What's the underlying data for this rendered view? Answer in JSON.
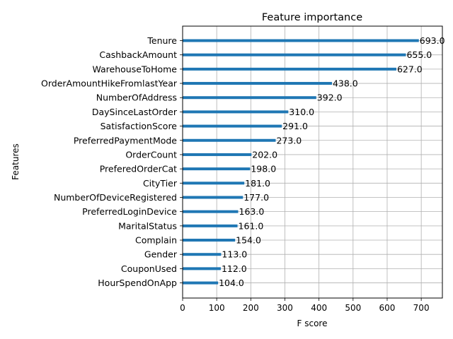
{
  "chart_data": {
    "type": "bar",
    "orientation": "horizontal",
    "title": "Feature importance",
    "xlabel": "F score",
    "ylabel": "Features",
    "xlim": [
      0,
      762
    ],
    "xticks": [
      "0",
      "100",
      "200",
      "300",
      "400",
      "500",
      "600",
      "700"
    ],
    "grid": true,
    "bar_color": "#1f77b4",
    "categories": [
      "Tenure",
      "CashbackAmount",
      "WarehouseToHome",
      "OrderAmountHikeFromlastYear",
      "NumberOfAddress",
      "DaySinceLastOrder",
      "SatisfactionScore",
      "PreferredPaymentMode",
      "OrderCount",
      "PreferedOrderCat",
      "CityTier",
      "NumberOfDeviceRegistered",
      "PreferredLoginDevice",
      "MaritalStatus",
      "Complain",
      "Gender",
      "CouponUsed",
      "HourSpendOnApp"
    ],
    "values": [
      693,
      655,
      627,
      438,
      392,
      310,
      291,
      273,
      202,
      198,
      181,
      177,
      163,
      161,
      154,
      113,
      112,
      104
    ],
    "data_labels": [
      "693.0",
      "655.0",
      "627.0",
      "438.0",
      "392.0",
      "310.0",
      "291.0",
      "273.0",
      "202.0",
      "198.0",
      "181.0",
      "177.0",
      "163.0",
      "161.0",
      "154.0",
      "113.0",
      "112.0",
      "104.0"
    ]
  }
}
